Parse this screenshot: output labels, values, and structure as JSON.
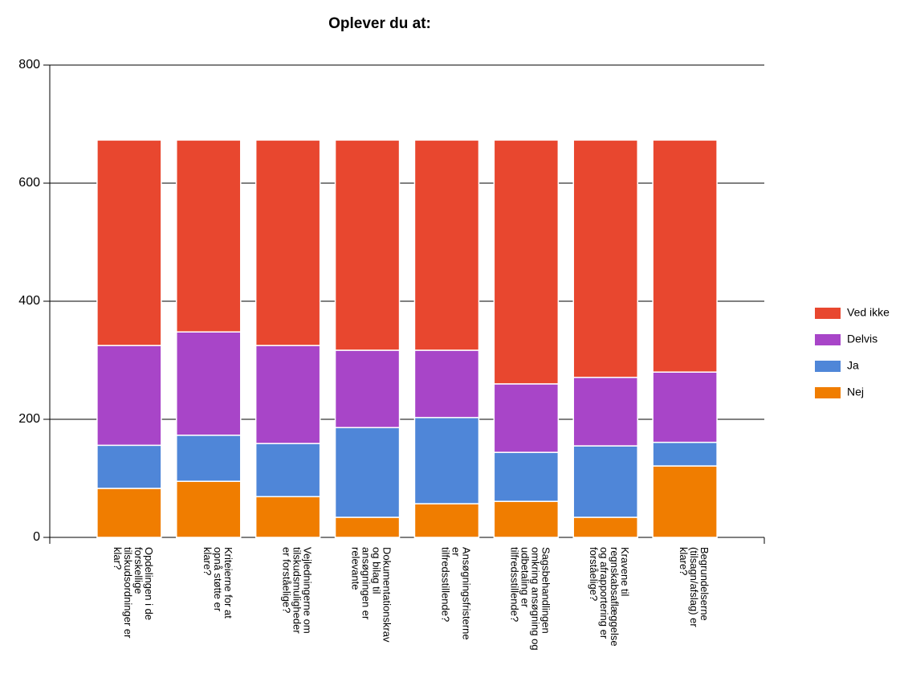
{
  "chart_data": {
    "type": "stacked_bar",
    "title": "Oplever du at:",
    "categories": [
      "Opdelingen i de forskellige tilskudsordninger er klar?",
      "Kriteierne for at opnå støtte er klare?",
      "Vejledningerne om tilskudsmuligheder er forståelige?",
      "Dokumentationskrav og bilag til ansøgningen er relevante",
      "Ansøgningsfristerne er tilfredsstillende?",
      "Sagsbehandlingen omkring ansøgning og udbetaling er tilfredsstillende?",
      "Kravene til regnskabsaflæggelse og afrapportering er forståelige?",
      "Begrundelserne (tilsagn/afslag) er klare?"
    ],
    "series": [
      {
        "name": "Nej",
        "color": "#f07d00",
        "values": [
          83,
          95,
          69,
          34,
          57,
          61,
          34,
          121
        ]
      },
      {
        "name": "Ja",
        "color": "#4f86d8",
        "values": [
          73,
          78,
          90,
          152,
          146,
          83,
          121,
          40
        ]
      },
      {
        "name": "Delvis",
        "color": "#a845c8",
        "values": [
          169,
          175,
          166,
          131,
          114,
          116,
          116,
          119
        ]
      },
      {
        "name": "Ved ikke",
        "color": "#e8472f",
        "values": [
          348,
          325,
          348,
          356,
          356,
          413,
          402,
          393
        ]
      }
    ],
    "ylim": [
      0,
      800
    ],
    "yticks": [
      0,
      200,
      400,
      600,
      800
    ],
    "grid": true,
    "legend": "right"
  }
}
